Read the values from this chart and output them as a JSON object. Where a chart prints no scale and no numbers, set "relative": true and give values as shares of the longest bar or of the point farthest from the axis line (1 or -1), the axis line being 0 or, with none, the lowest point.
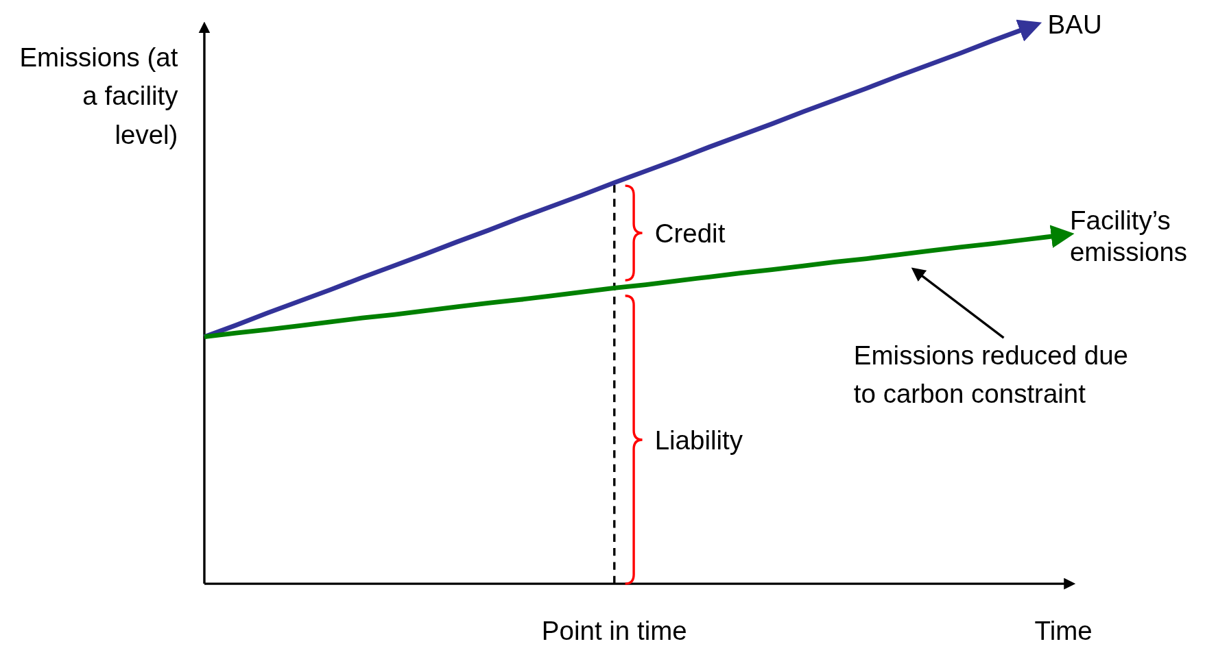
{
  "chart_data": {
    "type": "line",
    "relative": true,
    "xlabel": "Time",
    "ylabel": "Emissions (at a facility level)",
    "categories": [
      null,
      null,
      null,
      null,
      null,
      null,
      null,
      null,
      null,
      null,
      null,
      null,
      null,
      null,
      null,
      null,
      null,
      null,
      null,
      null,
      null,
      null,
      null,
      null,
      null,
      null,
      null,
      null
    ],
    "series": [
      {
        "name": "BAU",
        "color": "#333399",
        "values": [
          0.445,
          0.466,
          0.488,
          0.509,
          0.53,
          0.552,
          0.573,
          0.594,
          0.616,
          0.637,
          0.659,
          0.68,
          0.701,
          0.723,
          0.744,
          0.765,
          0.787,
          0.808,
          0.829,
          0.851,
          0.872,
          0.893,
          0.915,
          0.936,
          0.957,
          0.979,
          1.0,
          null
        ]
      },
      {
        "name": "Facility’s emissions",
        "color": "#008000",
        "values": [
          0.445,
          0.452,
          0.458,
          0.465,
          0.472,
          0.479,
          0.485,
          0.492,
          0.499,
          0.506,
          0.512,
          0.519,
          0.526,
          0.533,
          0.539,
          0.546,
          0.553,
          0.56,
          0.566,
          0.573,
          0.58,
          0.586,
          0.593,
          0.6,
          0.607,
          0.613,
          0.62,
          0.627
        ]
      }
    ],
    "annotations": [
      "Credit",
      "Liability",
      "Emissions reduced due to carbon constraint",
      "Point in time"
    ]
  }
}
